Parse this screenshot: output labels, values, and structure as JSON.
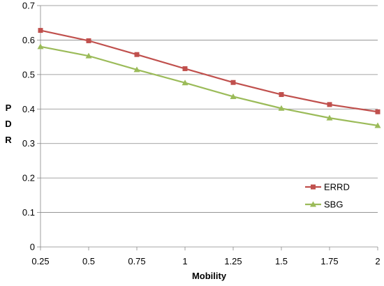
{
  "chart_data": {
    "type": "line",
    "title": "",
    "xlabel": "Mobility",
    "ylabel": "P D R",
    "x": [
      0.25,
      0.5,
      0.75,
      1,
      1.25,
      1.5,
      1.75,
      2
    ],
    "x_tick_labels": [
      "0.25",
      "0.5",
      "0.75",
      "1",
      "1.25",
      "1.5",
      "1.75",
      "2"
    ],
    "ylim": [
      0,
      0.7
    ],
    "y_ticks": [
      0,
      0.1,
      0.2,
      0.3,
      0.4,
      0.5,
      0.6,
      0.7
    ],
    "y_tick_labels": [
      "0",
      "0.1",
      "0.2",
      "0.3",
      "0.4",
      "0.5",
      "0.6",
      "0.7"
    ],
    "grid": "horizontal",
    "legend_position": "right",
    "series": [
      {
        "name": "ERRD",
        "values": [
          0.628,
          0.598,
          0.558,
          0.517,
          0.477,
          0.442,
          0.413,
          0.392
        ],
        "color": "#C0504D",
        "marker": "square"
      },
      {
        "name": "SBG",
        "values": [
          0.581,
          0.554,
          0.514,
          0.476,
          0.436,
          0.402,
          0.374,
          0.352
        ],
        "color": "#9BBB59",
        "marker": "triangle"
      }
    ]
  }
}
